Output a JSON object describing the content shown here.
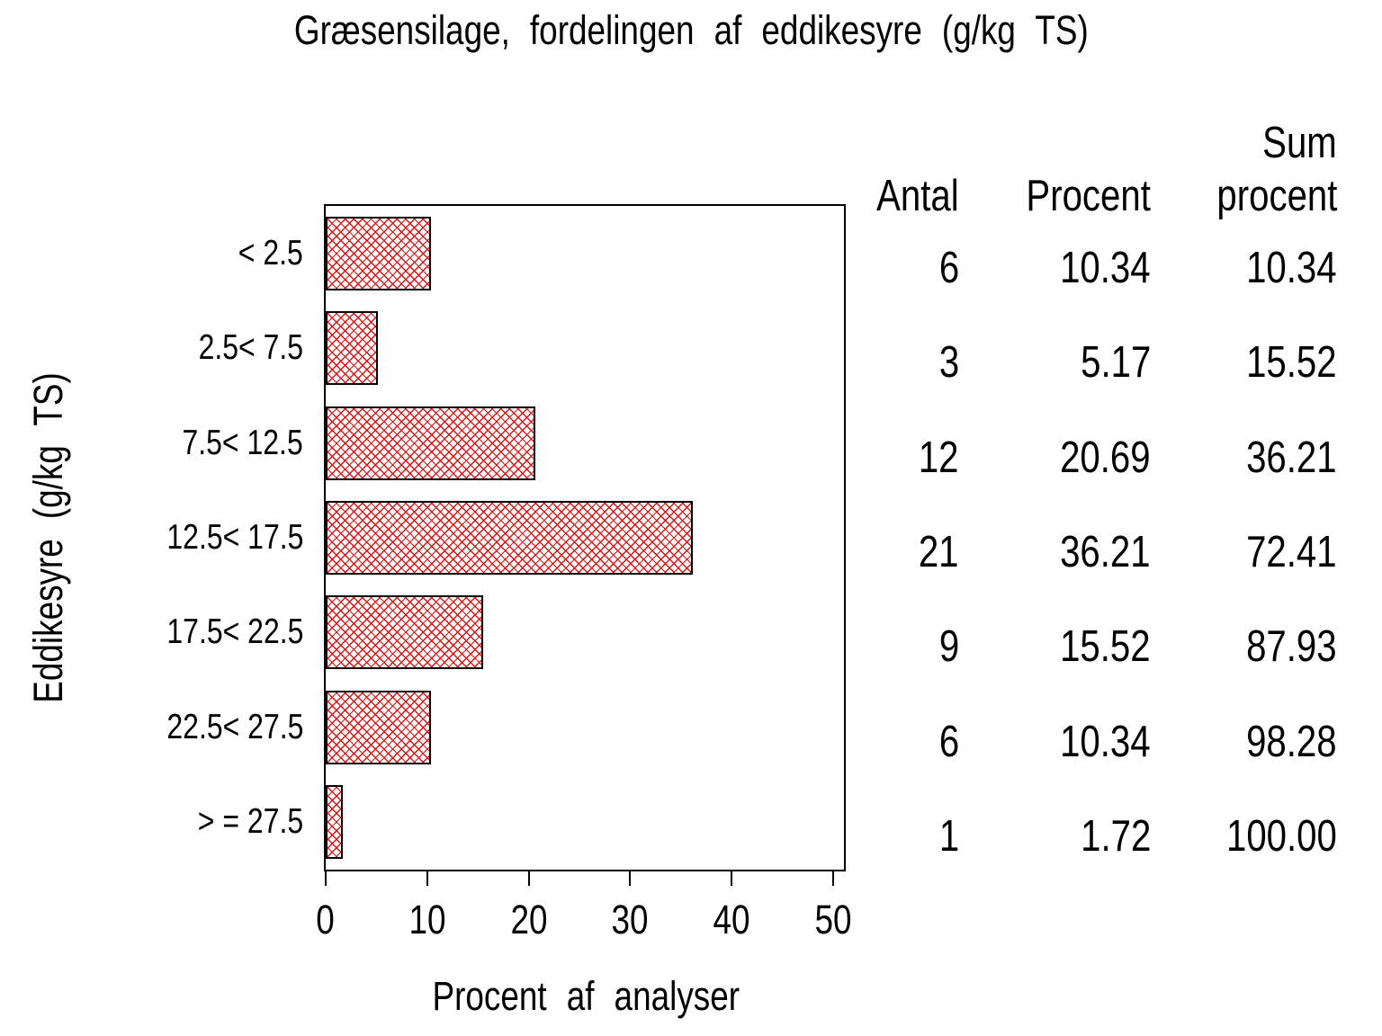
{
  "chart_data": {
    "type": "bar",
    "orientation": "horizontal",
    "title": "Græsensilage, fordelingen af eddikesyre (g/kg TS)",
    "xlabel": "Procent af analyser",
    "ylabel": "Eddikesyre (g/kg TS)",
    "categories": [
      "< 2.5",
      "2.5< 7.5",
      "7.5< 12.5",
      "12.5< 17.5",
      "17.5< 22.5",
      "22.5< 27.5",
      "> = 27.5"
    ],
    "values": [
      10.34,
      5.17,
      20.69,
      36.21,
      15.52,
      10.34,
      1.72
    ],
    "xlim": [
      0,
      50
    ],
    "x_ticks": [
      "0",
      "10",
      "20",
      "30",
      "40",
      "50"
    ],
    "grid": false,
    "legend": false,
    "bar_pattern": "crosshatch",
    "bar_color": "#e01313",
    "bar_border_color": "#000000",
    "frame_color": "#000000"
  },
  "table": {
    "headers": [
      {
        "label": "Antal"
      },
      {
        "label": "Procent"
      },
      {
        "label_line1": "Sum",
        "label_line2": "procent"
      }
    ],
    "rows": [
      {
        "antal": "6",
        "procent": "10.34",
        "sum_procent": "10.34"
      },
      {
        "antal": "3",
        "procent": "5.17",
        "sum_procent": "15.52"
      },
      {
        "antal": "12",
        "procent": "20.69",
        "sum_procent": "36.21"
      },
      {
        "antal": "21",
        "procent": "36.21",
        "sum_procent": "72.41"
      },
      {
        "antal": "9",
        "procent": "15.52",
        "sum_procent": "87.93"
      },
      {
        "antal": "6",
        "procent": "10.34",
        "sum_procent": "98.28"
      },
      {
        "antal": "1",
        "procent": "1.72",
        "sum_procent": "100.00"
      }
    ]
  }
}
